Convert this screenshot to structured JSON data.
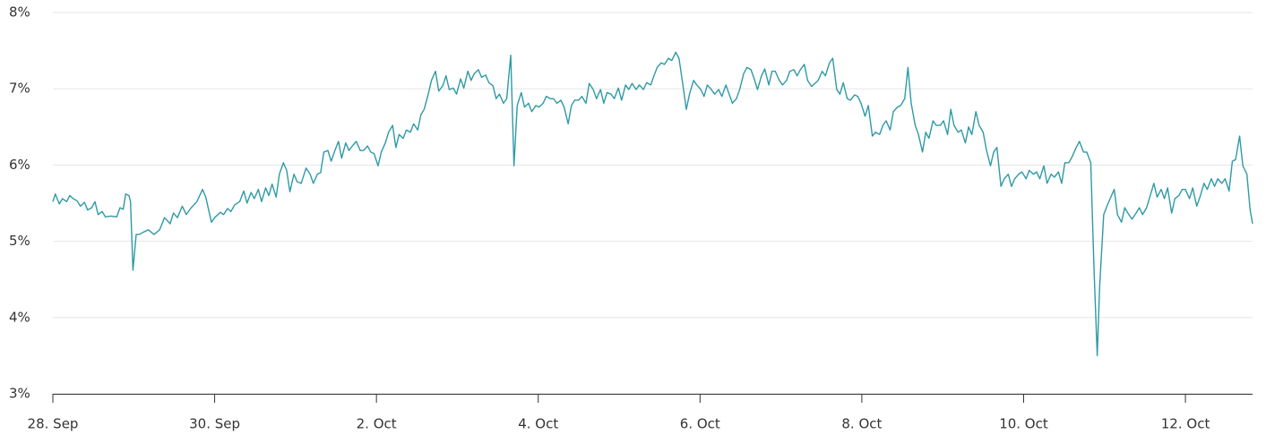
{
  "chart_data": {
    "type": "line",
    "color": "#2e9aa6",
    "grid": true,
    "xlim": [
      0,
      14.83
    ],
    "xticks": [
      {
        "value": 0,
        "label": "28. Sep"
      },
      {
        "value": 2,
        "label": "30. Sep"
      },
      {
        "value": 4,
        "label": "2. Oct"
      },
      {
        "value": 6,
        "label": "4. Oct"
      },
      {
        "value": 8,
        "label": "6. Oct"
      },
      {
        "value": 10,
        "label": "8. Oct"
      },
      {
        "value": 12,
        "label": "10. Oct"
      },
      {
        "value": 14,
        "label": "12. Oct"
      }
    ],
    "ylim": [
      3,
      8
    ],
    "yticks": [
      {
        "value": 3,
        "label": "3%"
      },
      {
        "value": 4,
        "label": "4%"
      },
      {
        "value": 5,
        "label": "5%"
      },
      {
        "value": 6,
        "label": "6%"
      },
      {
        "value": 7,
        "label": "7%"
      },
      {
        "value": 8,
        "label": "8%"
      }
    ],
    "x": [
      0.0,
      0.03,
      0.08,
      0.12,
      0.17,
      0.21,
      0.25,
      0.3,
      0.34,
      0.39,
      0.43,
      0.48,
      0.52,
      0.56,
      0.61,
      0.65,
      0.72,
      0.79,
      0.83,
      0.87,
      0.9,
      0.94,
      0.96,
      0.99,
      1.03,
      1.07,
      1.12,
      1.18,
      1.25,
      1.32,
      1.38,
      1.45,
      1.49,
      1.54,
      1.6,
      1.65,
      1.71,
      1.78,
      1.85,
      1.89,
      1.96,
      2.0,
      2.07,
      2.11,
      2.16,
      2.2,
      2.25,
      2.31,
      2.36,
      2.4,
      2.45,
      2.49,
      2.54,
      2.58,
      2.63,
      2.67,
      2.71,
      2.76,
      2.8,
      2.85,
      2.89,
      2.93,
      2.98,
      3.02,
      3.07,
      3.13,
      3.18,
      3.22,
      3.27,
      3.31,
      3.35,
      3.4,
      3.44,
      3.49,
      3.53,
      3.57,
      3.62,
      3.66,
      3.71,
      3.75,
      3.8,
      3.84,
      3.89,
      3.93,
      3.97,
      4.02,
      4.06,
      4.11,
      4.15,
      4.2,
      4.24,
      4.28,
      4.33,
      4.37,
      4.42,
      4.46,
      4.51,
      4.55,
      4.59,
      4.64,
      4.68,
      4.73,
      4.77,
      4.82,
      4.86,
      4.9,
      4.95,
      4.99,
      5.04,
      5.08,
      5.13,
      5.17,
      5.21,
      5.26,
      5.3,
      5.35,
      5.39,
      5.44,
      5.48,
      5.52,
      5.57,
      5.61,
      5.66,
      5.7,
      5.74,
      5.79,
      5.83,
      5.88,
      5.92,
      5.97,
      6.01,
      6.06,
      6.1,
      6.15,
      6.19,
      6.23,
      6.28,
      6.32,
      6.37,
      6.41,
      6.45,
      6.5,
      6.54,
      6.59,
      6.63,
      6.68,
      6.72,
      6.77,
      6.81,
      6.85,
      6.9,
      6.94,
      6.99,
      7.03,
      7.08,
      7.12,
      7.16,
      7.21,
      7.25,
      7.3,
      7.34,
      7.39,
      7.43,
      7.47,
      7.52,
      7.56,
      7.61,
      7.65,
      7.7,
      7.74,
      7.78,
      7.83,
      7.87,
      7.92,
      7.96,
      8.01,
      8.05,
      8.09,
      8.14,
      8.18,
      8.23,
      8.27,
      8.32,
      8.36,
      8.4,
      8.45,
      8.49,
      8.54,
      8.58,
      8.63,
      8.67,
      8.71,
      8.76,
      8.8,
      8.85,
      8.89,
      8.93,
      8.98,
      9.02,
      9.07,
      9.11,
      9.16,
      9.2,
      9.24,
      9.29,
      9.33,
      9.38,
      9.42,
      9.46,
      9.51,
      9.55,
      9.6,
      9.64,
      9.69,
      9.73,
      9.77,
      9.82,
      9.86,
      9.91,
      9.95,
      9.99,
      10.04,
      10.08,
      10.13,
      10.17,
      10.22,
      10.26,
      10.3,
      10.35,
      10.39,
      10.44,
      10.48,
      10.53,
      10.57,
      10.61,
      10.66,
      10.7,
      10.75,
      10.79,
      10.83,
      10.88,
      10.92,
      10.97,
      11.01,
      11.06,
      11.1,
      11.14,
      11.19,
      11.23,
      11.28,
      11.32,
      11.36,
      11.41,
      11.45,
      11.5,
      11.54,
      11.59,
      11.63,
      11.67,
      11.72,
      11.76,
      11.81,
      11.85,
      11.89,
      11.94,
      11.98,
      12.03,
      12.07,
      12.12,
      12.16,
      12.2,
      12.25,
      12.29,
      12.34,
      12.38,
      12.43,
      12.47,
      12.51,
      12.56,
      12.6,
      12.65,
      12.69,
      12.74,
      12.78,
      12.83,
      12.87,
      12.91,
      12.94,
      12.99,
      13.03,
      13.07,
      13.12,
      13.16,
      13.21,
      13.25,
      13.3,
      13.34,
      13.39,
      13.43,
      13.47,
      13.52,
      13.56,
      13.61,
      13.65,
      13.7,
      13.74,
      13.78,
      13.83,
      13.87,
      13.92,
      13.96,
      14.0,
      14.05,
      14.09,
      14.14,
      14.18,
      14.23,
      14.27,
      14.32,
      14.36,
      14.4,
      14.45,
      14.49,
      14.54,
      14.58,
      14.62,
      14.67,
      14.71,
      14.76,
      14.8,
      14.83
    ],
    "values": [
      5.52,
      5.62,
      5.49,
      5.56,
      5.52,
      5.6,
      5.56,
      5.53,
      5.46,
      5.51,
      5.41,
      5.44,
      5.52,
      5.35,
      5.39,
      5.32,
      5.33,
      5.32,
      5.44,
      5.42,
      5.62,
      5.6,
      5.52,
      4.62,
      5.09,
      5.09,
      5.12,
      5.15,
      5.09,
      5.15,
      5.31,
      5.23,
      5.37,
      5.31,
      5.46,
      5.35,
      5.44,
      5.52,
      5.68,
      5.58,
      5.25,
      5.31,
      5.38,
      5.35,
      5.43,
      5.39,
      5.48,
      5.52,
      5.66,
      5.5,
      5.64,
      5.56,
      5.68,
      5.52,
      5.7,
      5.6,
      5.75,
      5.58,
      5.88,
      6.03,
      5.93,
      5.65,
      5.88,
      5.78,
      5.76,
      5.96,
      5.88,
      5.76,
      5.88,
      5.9,
      6.17,
      6.19,
      6.05,
      6.2,
      6.31,
      6.09,
      6.29,
      6.19,
      6.26,
      6.31,
      6.19,
      6.19,
      6.25,
      6.17,
      6.15,
      5.99,
      6.17,
      6.29,
      6.43,
      6.52,
      6.23,
      6.4,
      6.35,
      6.46,
      6.43,
      6.54,
      6.46,
      6.66,
      6.73,
      6.93,
      7.11,
      7.23,
      6.97,
      7.04,
      7.17,
      6.99,
      7.01,
      6.93,
      7.13,
      7.01,
      7.23,
      7.11,
      7.2,
      7.25,
      7.15,
      7.18,
      7.08,
      7.04,
      6.87,
      6.93,
      6.81,
      6.87,
      7.44,
      5.99,
      6.78,
      6.95,
      6.76,
      6.81,
      6.7,
      6.78,
      6.76,
      6.81,
      6.9,
      6.87,
      6.87,
      6.81,
      6.85,
      6.76,
      6.54,
      6.78,
      6.85,
      6.85,
      6.9,
      6.81,
      7.07,
      6.99,
      6.87,
      6.99,
      6.81,
      6.95,
      6.93,
      6.87,
      7.01,
      6.85,
      7.05,
      6.99,
      7.07,
      6.99,
      7.05,
      6.99,
      7.08,
      7.05,
      7.17,
      7.28,
      7.34,
      7.32,
      7.4,
      7.37,
      7.48,
      7.4,
      7.11,
      6.73,
      6.93,
      7.11,
      7.05,
      6.99,
      6.9,
      7.05,
      6.99,
      6.93,
      6.99,
      6.9,
      7.05,
      6.93,
      6.81,
      6.87,
      6.99,
      7.2,
      7.28,
      7.25,
      7.13,
      6.99,
      7.17,
      7.26,
      7.05,
      7.23,
      7.23,
      7.11,
      7.05,
      7.11,
      7.23,
      7.25,
      7.17,
      7.25,
      7.32,
      7.11,
      7.03,
      7.07,
      7.11,
      7.23,
      7.17,
      7.34,
      7.4,
      6.99,
      6.93,
      7.08,
      6.87,
      6.85,
      6.92,
      6.9,
      6.81,
      6.64,
      6.78,
      6.38,
      6.43,
      6.4,
      6.52,
      6.58,
      6.46,
      6.7,
      6.76,
      6.78,
      6.87,
      7.28,
      6.81,
      6.52,
      6.4,
      6.17,
      6.43,
      6.35,
      6.58,
      6.52,
      6.52,
      6.58,
      6.4,
      6.73,
      6.52,
      6.43,
      6.46,
      6.29,
      6.5,
      6.4,
      6.7,
      6.52,
      6.43,
      6.2,
      5.99,
      6.17,
      6.23,
      5.72,
      5.82,
      5.88,
      5.72,
      5.82,
      5.88,
      5.91,
      5.82,
      5.93,
      5.88,
      5.91,
      5.82,
      5.99,
      5.76,
      5.88,
      5.84,
      5.91,
      5.76,
      6.03,
      6.03,
      6.11,
      6.23,
      6.31,
      6.17,
      6.17,
      6.03,
      4.64,
      3.5,
      4.41,
      5.35,
      5.46,
      5.56,
      5.68,
      5.35,
      5.25,
      5.44,
      5.35,
      5.29,
      5.37,
      5.44,
      5.35,
      5.44,
      5.58,
      5.76,
      5.58,
      5.68,
      5.56,
      5.7,
      5.37,
      5.56,
      5.6,
      5.68,
      5.68,
      5.56,
      5.7,
      5.46,
      5.58,
      5.76,
      5.68,
      5.82,
      5.72,
      5.82,
      5.76,
      5.82,
      5.66,
      6.05,
      6.07,
      6.38,
      5.99,
      5.88,
      5.41,
      5.23
    ]
  }
}
